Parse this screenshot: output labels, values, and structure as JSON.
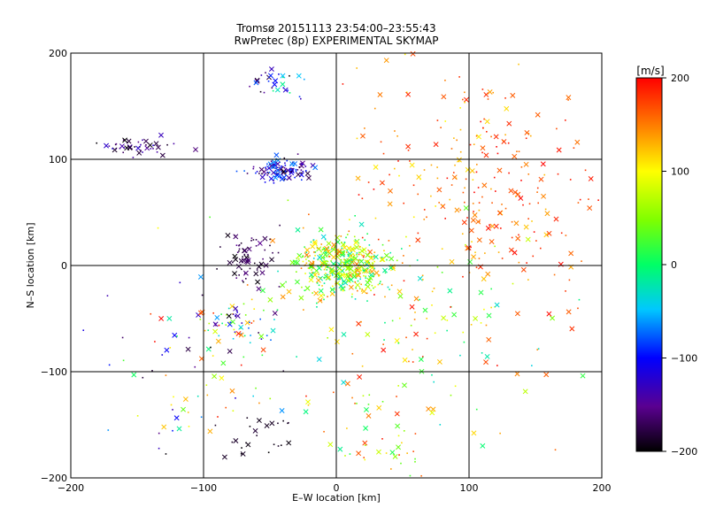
{
  "chart_data": {
    "type": "scatter",
    "title": "Tromsø 20151113 23:54:00–23:55:43",
    "subtitle": "RwPretec (8p) EXPERIMENTAL SKYMAP",
    "xlabel": "E–W location [km]",
    "ylabel": "N–S location [km]",
    "xlim": [
      -200,
      200
    ],
    "ylim": [
      -200,
      200
    ],
    "xticks": [
      "−200",
      "−100",
      "0",
      "100",
      "200"
    ],
    "yticks": [
      "−200",
      "−100",
      "0",
      "100",
      "200"
    ],
    "tick_values": [
      -200,
      -100,
      0,
      100,
      200
    ],
    "grid": true,
    "colorbar": {
      "label": "[m/s]",
      "range": [
        -200,
        200
      ],
      "ticks": [
        "−200",
        "−100",
        "0",
        "100",
        "200"
      ],
      "tick_values": [
        -200,
        -100,
        0,
        100,
        200
      ]
    },
    "clusters": [
      {
        "x": 5,
        "y": 0,
        "sx": 18,
        "sy": 14,
        "n": 420,
        "vmin": -40,
        "vmax": 160
      },
      {
        "x": -40,
        "y": 90,
        "sx": 10,
        "sy": 5,
        "n": 120,
        "vmin": -200,
        "vmax": -60
      },
      {
        "x": -150,
        "y": 112,
        "sx": 14,
        "sy": 4,
        "n": 45,
        "vmin": -200,
        "vmax": -120
      },
      {
        "x": -65,
        "y": 7,
        "sx": 12,
        "sy": 14,
        "n": 70,
        "vmin": -200,
        "vmax": -150
      },
      {
        "x": -75,
        "y": -55,
        "sx": 14,
        "sy": 10,
        "n": 55,
        "vmin": -200,
        "vmax": 200
      },
      {
        "x": -45,
        "y": 170,
        "sx": 10,
        "sy": 8,
        "n": 30,
        "vmin": -200,
        "vmax": 0
      },
      {
        "x": 80,
        "y": 110,
        "sx": 35,
        "sy": 40,
        "n": 110,
        "vmin": 100,
        "vmax": 200
      },
      {
        "x": 120,
        "y": 40,
        "sx": 30,
        "sy": 30,
        "n": 80,
        "vmin": 120,
        "vmax": 200
      },
      {
        "x": 60,
        "y": -60,
        "sx": 50,
        "sy": 60,
        "n": 160,
        "vmin": -40,
        "vmax": 200
      },
      {
        "x": -100,
        "y": -90,
        "sx": 45,
        "sy": 45,
        "n": 90,
        "vmin": -200,
        "vmax": 200
      },
      {
        "x": 150,
        "y": 60,
        "sx": 25,
        "sy": 60,
        "n": 55,
        "vmin": 150,
        "vmax": 200
      },
      {
        "x": 40,
        "y": -160,
        "sx": 20,
        "sy": 20,
        "n": 35,
        "vmin": 0,
        "vmax": 200
      },
      {
        "x": -60,
        "y": -160,
        "sx": 15,
        "sy": 15,
        "n": 25,
        "vmin": -200,
        "vmax": -180
      }
    ],
    "marker_styles": [
      "cross",
      "dot"
    ]
  }
}
